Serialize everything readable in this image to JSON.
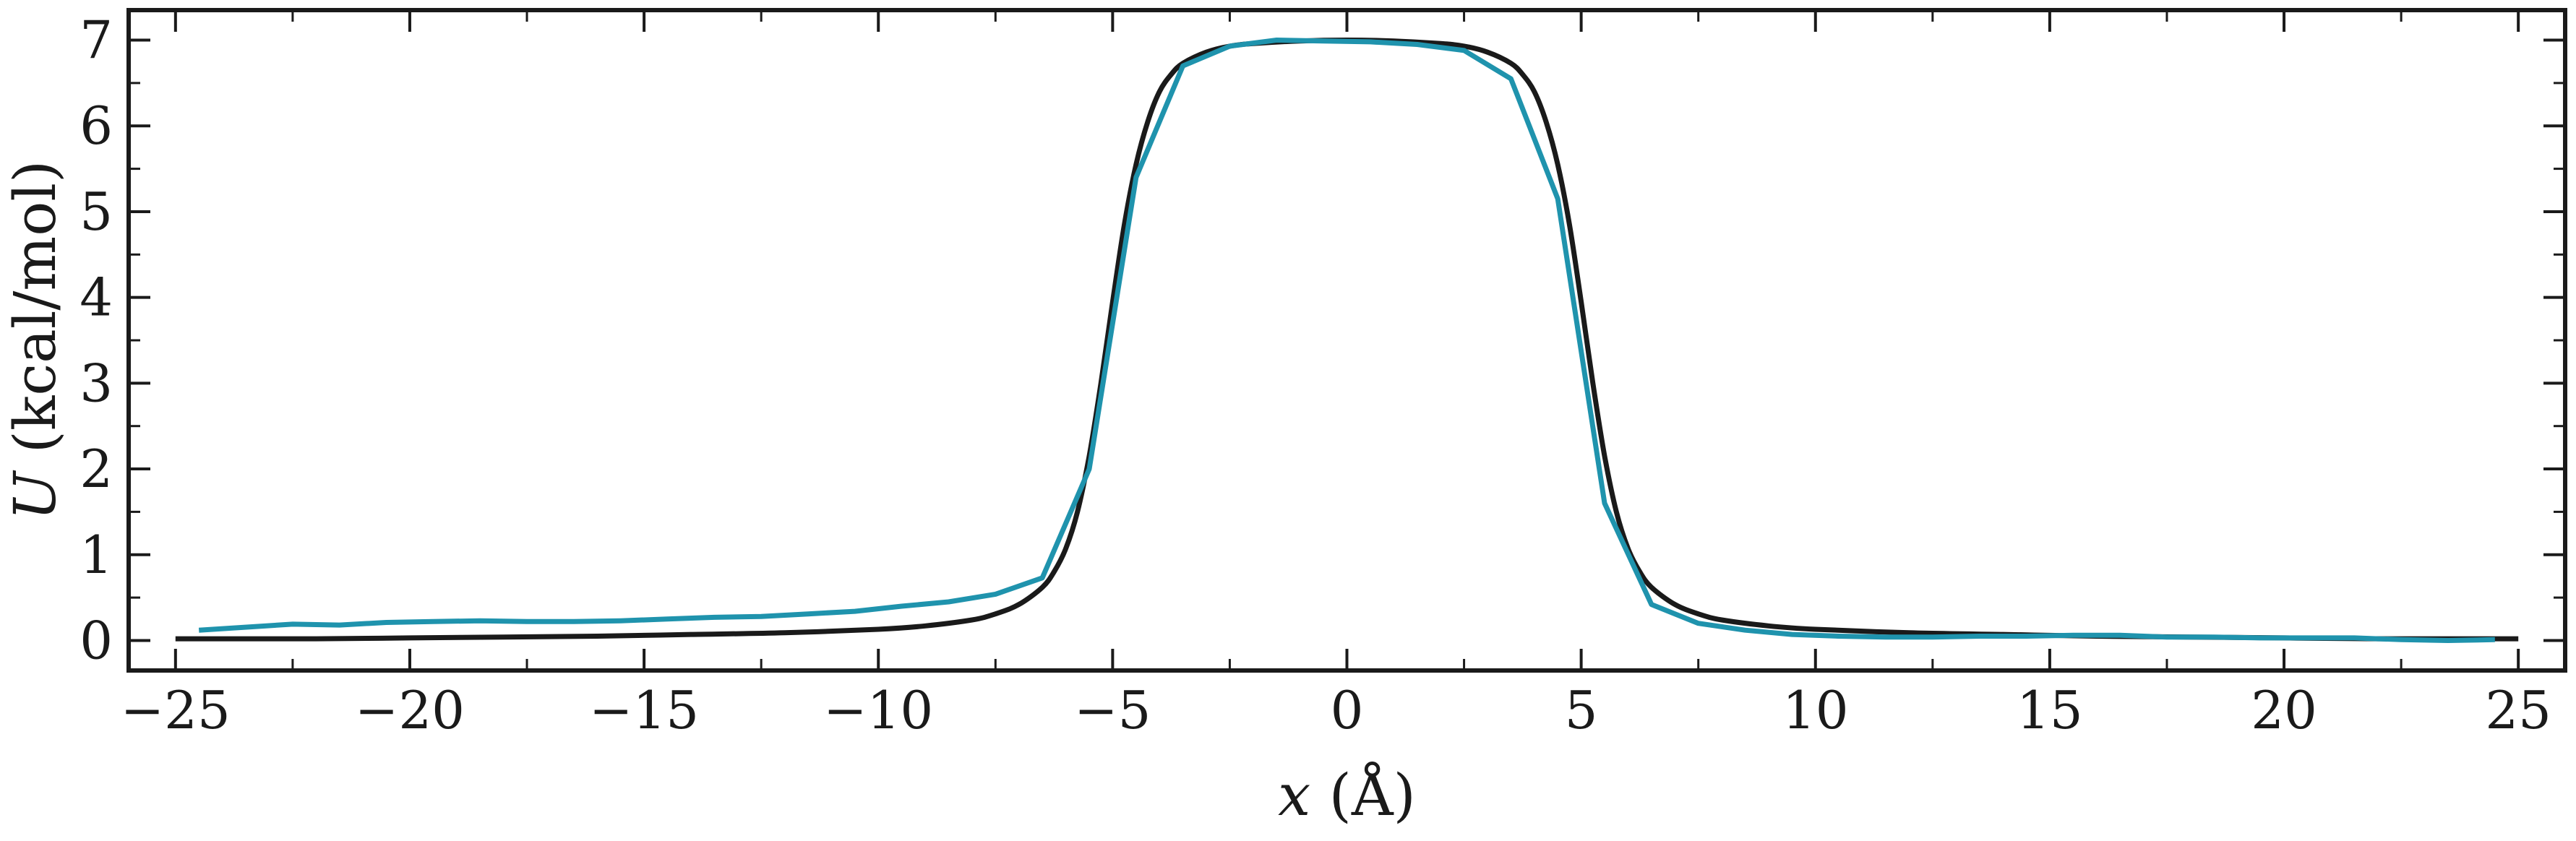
{
  "chart_data": {
    "type": "line",
    "xlabel": {
      "var": "x",
      "unit": " (Å)"
    },
    "ylabel": {
      "var": "U",
      "unit": " (kcal/mol)"
    },
    "xlim": [
      -26,
      26
    ],
    "ylim": [
      -0.35,
      7.35
    ],
    "xticks": [
      -25,
      -20,
      -15,
      -10,
      -5,
      0,
      5,
      10,
      15,
      20,
      25
    ],
    "xtick_labels": [
      "−25",
      "−20",
      "−15",
      "−10",
      "−5",
      "0",
      "5",
      "10",
      "15",
      "20",
      "25"
    ],
    "yticks": [
      0,
      1,
      2,
      3,
      4,
      5,
      6,
      7
    ],
    "ytick_labels": [
      "0",
      "1",
      "2",
      "3",
      "4",
      "5",
      "6",
      "7"
    ],
    "grid": false,
    "colors": {
      "fit": "#1a1a1a",
      "data": "#1f93ad",
      "axes": "#1a1a1a"
    },
    "series": [
      {
        "style": "smooth",
        "x": [
          -25,
          -22,
          -20,
          -18,
          -16,
          -14,
          -12,
          -10,
          -9,
          -8,
          -7.5,
          -7,
          -6.5,
          -6.25,
          -6,
          -5.75,
          -5.5,
          -5.25,
          -5,
          -4.75,
          -4.5,
          -4.25,
          -4,
          -3.75,
          -3.5,
          -3,
          -2.5,
          -2,
          -1,
          0,
          1,
          2,
          2.5,
          3,
          3.5,
          3.75,
          4,
          4.25,
          4.5,
          4.75,
          5,
          5.25,
          5.5,
          5.75,
          6,
          6.25,
          6.5,
          7,
          7.5,
          8,
          9,
          10,
          12,
          14,
          16,
          18,
          20,
          22,
          25
        ],
        "y": [
          0.02,
          0.02,
          0.03,
          0.04,
          0.05,
          0.07,
          0.09,
          0.13,
          0.17,
          0.24,
          0.31,
          0.42,
          0.62,
          0.8,
          1.07,
          1.5,
          2.15,
          3.0,
          3.95,
          4.85,
          5.55,
          6.05,
          6.4,
          6.6,
          6.73,
          6.86,
          6.93,
          6.96,
          6.99,
          7.0,
          6.99,
          6.96,
          6.93,
          6.86,
          6.73,
          6.6,
          6.4,
          6.05,
          5.55,
          4.85,
          3.95,
          3.0,
          2.15,
          1.5,
          1.07,
          0.8,
          0.62,
          0.42,
          0.31,
          0.24,
          0.17,
          0.13,
          0.09,
          0.07,
          0.05,
          0.04,
          0.03,
          0.02,
          0.02
        ]
      },
      {
        "style": "polyline",
        "x": [
          -24.5,
          -22.5,
          -21.5,
          -20.5,
          -19.5,
          -18.5,
          -17.5,
          -16.5,
          -15.5,
          -14.5,
          -13.5,
          -12.5,
          -11.5,
          -10.5,
          -9.5,
          -8.5,
          -7.5,
          -6.5,
          -5.5,
          -4.5,
          -3.5,
          -2.5,
          -1.5,
          -0.5,
          0.5,
          1.5,
          2.5,
          3.5,
          4.5,
          5.5,
          6.5,
          7.5,
          8.5,
          9.5,
          10.5,
          11.5,
          12.5,
          13.5,
          14.5,
          15.5,
          16.5,
          17.5,
          18.5,
          19.5,
          20.5,
          21.5,
          22.5,
          23.5,
          24.5
        ],
        "y": [
          0.12,
          0.19,
          0.18,
          0.21,
          0.22,
          0.23,
          0.22,
          0.22,
          0.23,
          0.25,
          0.27,
          0.28,
          0.31,
          0.34,
          0.4,
          0.45,
          0.54,
          0.73,
          2.0,
          5.4,
          6.7,
          6.93,
          7.0,
          6.99,
          6.98,
          6.95,
          6.88,
          6.55,
          5.15,
          1.6,
          0.42,
          0.2,
          0.12,
          0.07,
          0.05,
          0.04,
          0.04,
          0.05,
          0.05,
          0.06,
          0.06,
          0.04,
          0.04,
          0.03,
          0.03,
          0.03,
          0.01,
          0.0,
          0.01
        ]
      }
    ]
  }
}
